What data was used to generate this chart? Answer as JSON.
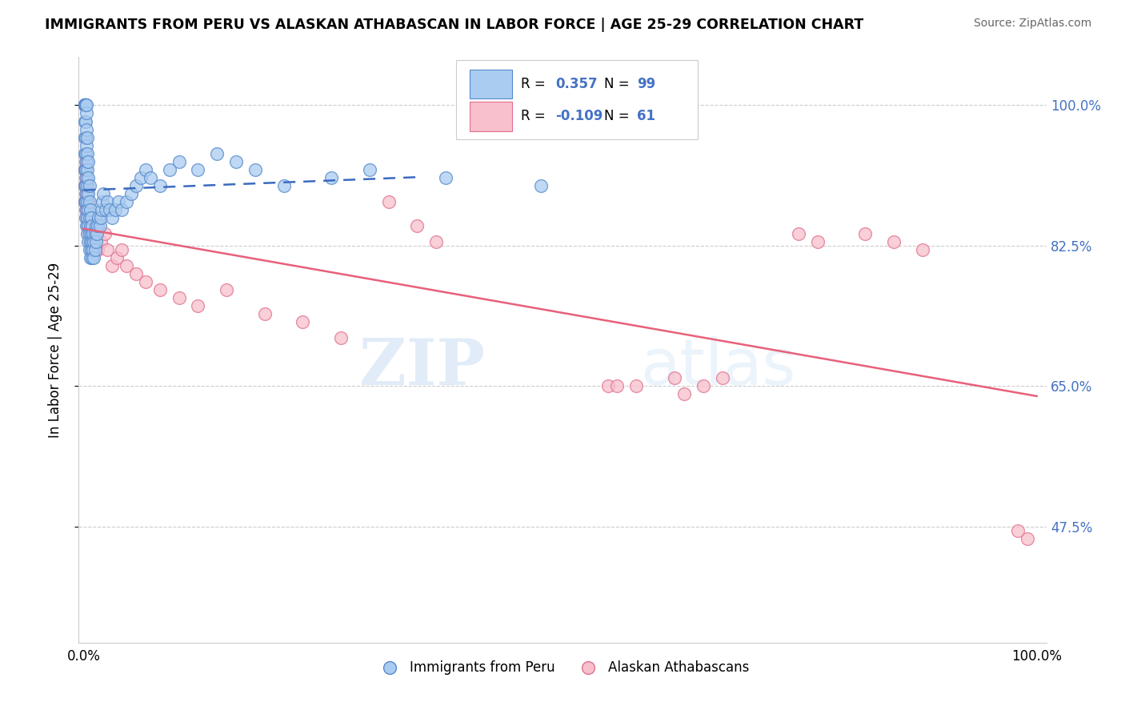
{
  "title": "IMMIGRANTS FROM PERU VS ALASKAN ATHABASCAN IN LABOR FORCE | AGE 25-29 CORRELATION CHART",
  "source": "Source: ZipAtlas.com",
  "ylabel": "In Labor Force | Age 25-29",
  "legend_r_blue": "0.357",
  "legend_n_blue": "99",
  "legend_r_pink": "-0.109",
  "legend_n_pink": "61",
  "legend_label_blue": "Immigrants from Peru",
  "legend_label_pink": "Alaskan Athabascans",
  "blue_fill": "#aaccf0",
  "blue_edge": "#5588cc",
  "pink_fill": "#f7c0cc",
  "pink_edge": "#e07090",
  "blue_line_color": "#3a6bbf",
  "pink_line_color": "#e8607a",
  "watermark_zip": "ZIP",
  "watermark_atlas": "atlas",
  "ytick_vals": [
    0.475,
    0.65,
    0.825,
    1.0
  ],
  "ytick_labels": [
    "47.5%",
    "65.0%",
    "82.5%",
    "100.0%"
  ],
  "xlim": [
    -0.005,
    1.01
  ],
  "ylim": [
    0.33,
    1.06
  ],
  "blue_x": [
    0.001,
    0.001,
    0.001,
    0.001,
    0.001,
    0.001,
    0.001,
    0.001,
    0.001,
    0.001,
    0.002,
    0.002,
    0.002,
    0.002,
    0.002,
    0.002,
    0.002,
    0.002,
    0.002,
    0.002,
    0.002,
    0.003,
    0.003,
    0.003,
    0.003,
    0.003,
    0.003,
    0.003,
    0.003,
    0.003,
    0.004,
    0.004,
    0.004,
    0.004,
    0.004,
    0.004,
    0.004,
    0.005,
    0.005,
    0.005,
    0.005,
    0.005,
    0.005,
    0.006,
    0.006,
    0.006,
    0.006,
    0.006,
    0.007,
    0.007,
    0.007,
    0.007,
    0.008,
    0.008,
    0.008,
    0.009,
    0.009,
    0.009,
    0.01,
    0.01,
    0.011,
    0.011,
    0.012,
    0.012,
    0.013,
    0.013,
    0.014,
    0.015,
    0.016,
    0.017,
    0.018,
    0.019,
    0.02,
    0.021,
    0.023,
    0.025,
    0.027,
    0.03,
    0.033,
    0.037,
    0.04,
    0.045,
    0.05,
    0.055,
    0.06,
    0.065,
    0.07,
    0.08,
    0.09,
    0.1,
    0.12,
    0.14,
    0.16,
    0.18,
    0.21,
    0.26,
    0.3,
    0.38,
    0.48
  ],
  "blue_y": [
    0.88,
    0.9,
    0.92,
    0.94,
    0.96,
    0.98,
    1.0,
    1.0,
    1.0,
    1.0,
    0.86,
    0.88,
    0.9,
    0.92,
    0.94,
    0.96,
    0.98,
    1.0,
    1.0,
    1.0,
    1.0,
    0.85,
    0.87,
    0.89,
    0.91,
    0.93,
    0.95,
    0.97,
    0.99,
    1.0,
    0.84,
    0.86,
    0.88,
    0.9,
    0.92,
    0.94,
    0.96,
    0.83,
    0.85,
    0.87,
    0.89,
    0.91,
    0.93,
    0.82,
    0.84,
    0.86,
    0.88,
    0.9,
    0.81,
    0.83,
    0.85,
    0.87,
    0.82,
    0.84,
    0.86,
    0.81,
    0.83,
    0.85,
    0.82,
    0.84,
    0.81,
    0.83,
    0.82,
    0.84,
    0.83,
    0.85,
    0.84,
    0.85,
    0.86,
    0.85,
    0.86,
    0.87,
    0.88,
    0.89,
    0.87,
    0.88,
    0.87,
    0.86,
    0.87,
    0.88,
    0.87,
    0.88,
    0.89,
    0.9,
    0.91,
    0.92,
    0.91,
    0.9,
    0.92,
    0.93,
    0.92,
    0.94,
    0.93,
    0.92,
    0.9,
    0.91,
    0.92,
    0.91,
    0.9
  ],
  "pink_x": [
    0.001,
    0.001,
    0.001,
    0.002,
    0.002,
    0.002,
    0.002,
    0.003,
    0.003,
    0.003,
    0.004,
    0.004,
    0.004,
    0.005,
    0.005,
    0.005,
    0.006,
    0.006,
    0.007,
    0.007,
    0.008,
    0.008,
    0.009,
    0.01,
    0.011,
    0.012,
    0.013,
    0.015,
    0.018,
    0.022,
    0.025,
    0.03,
    0.035,
    0.04,
    0.045,
    0.055,
    0.065,
    0.08,
    0.1,
    0.12,
    0.15,
    0.19,
    0.23,
    0.27,
    0.32,
    0.35,
    0.37,
    0.55,
    0.56,
    0.58,
    0.62,
    0.63,
    0.65,
    0.67,
    0.75,
    0.77,
    0.82,
    0.85,
    0.88,
    0.98,
    0.99
  ],
  "pink_y": [
    0.88,
    0.9,
    0.92,
    0.87,
    0.89,
    0.91,
    0.93,
    0.86,
    0.88,
    0.9,
    0.85,
    0.87,
    0.89,
    0.84,
    0.86,
    0.88,
    0.83,
    0.85,
    0.84,
    0.86,
    0.83,
    0.85,
    0.84,
    0.83,
    0.82,
    0.83,
    0.84,
    0.82,
    0.83,
    0.84,
    0.82,
    0.8,
    0.81,
    0.82,
    0.8,
    0.79,
    0.78,
    0.77,
    0.76,
    0.75,
    0.77,
    0.74,
    0.73,
    0.71,
    0.88,
    0.85,
    0.83,
    0.65,
    0.65,
    0.65,
    0.66,
    0.64,
    0.65,
    0.66,
    0.84,
    0.83,
    0.84,
    0.83,
    0.82,
    0.47,
    0.46
  ]
}
